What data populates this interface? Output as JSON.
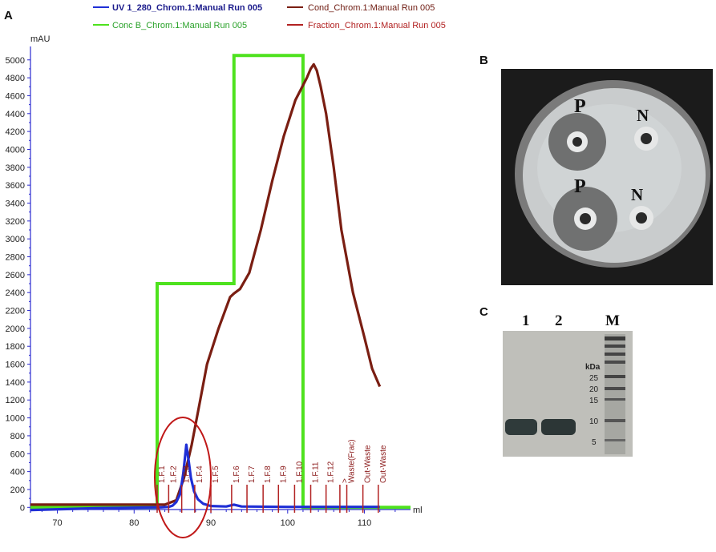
{
  "panels": {
    "a": "A",
    "b": "B",
    "c": "C"
  },
  "colors": {
    "uv": "#1f2fd6",
    "cond": "#7a1e12",
    "concb": "#4ee21e",
    "fraction": "#b22222",
    "axis": "#2a2ad0",
    "uv_legend_text": "#1c1c8c",
    "concb_legend_text": "#2aa22a",
    "cond_legend_text": "#6e1a10",
    "fraction_legend_text": "#b22222"
  },
  "chart_data": {
    "type": "line",
    "ylabel": "mAU",
    "xlabel": "ml",
    "xlim": [
      66.5,
      116
    ],
    "ylim": [
      -60,
      5150
    ],
    "x_ticks": [
      70,
      80,
      90,
      100,
      110
    ],
    "y_ticks": [
      0,
      200,
      400,
      600,
      800,
      1000,
      1200,
      1400,
      1600,
      1800,
      2000,
      2200,
      2400,
      2600,
      2800,
      3000,
      3200,
      3400,
      3600,
      3800,
      4000,
      4200,
      4400,
      4600,
      4800,
      5000
    ],
    "grid": false,
    "legend_position": "top",
    "series": [
      {
        "name": "UV 1_280_Chrom.1:Manual Run  005",
        "x": [
          66.5,
          75,
          82.5,
          83.5,
          84.5,
          85,
          85.5,
          86,
          86.4,
          86.8,
          87.1,
          87.4,
          87.8,
          88.3,
          89,
          90,
          92,
          93,
          94,
          100,
          105,
          112
        ],
        "y": [
          -30,
          -10,
          0,
          0,
          5,
          20,
          60,
          150,
          380,
          700,
          520,
          330,
          180,
          90,
          40,
          15,
          10,
          30,
          10,
          5,
          5,
          5
        ]
      },
      {
        "name": "Cond_Chrom.1:Manual Run  005",
        "x": [
          66.5,
          75,
          82.5,
          84,
          85.5,
          86.5,
          87.5,
          88.5,
          89.5,
          91,
          92.5,
          93,
          93.8,
          95,
          96.5,
          98,
          99.5,
          101,
          102.5,
          103,
          103.4,
          103.8,
          104.3,
          105,
          106,
          107,
          108.5,
          110,
          111,
          112
        ],
        "y": [
          30,
          30,
          30,
          30,
          80,
          330,
          700,
          1150,
          1600,
          2000,
          2350,
          2390,
          2440,
          2620,
          3100,
          3650,
          4150,
          4550,
          4800,
          4900,
          4950,
          4880,
          4700,
          4400,
          3800,
          3100,
          2400,
          1900,
          1550,
          1350
        ]
      },
      {
        "name": "Conc B_Chrom.1:Manual Run  005",
        "x": [
          66.5,
          83,
          83,
          93,
          93,
          102,
          102,
          116
        ],
        "y": [
          0,
          0,
          2500,
          2500,
          5050,
          5050,
          0,
          0
        ]
      }
    ],
    "fractions": {
      "name": "Fraction_Chrom.1:Manual Run  005",
      "marks": [
        {
          "x": 83.0,
          "label": "1.F.1"
        },
        {
          "x": 84.5,
          "label": "1.F.2"
        },
        {
          "x": 86.2,
          "label": "1.F.3"
        },
        {
          "x": 87.9,
          "label": "1.F.4"
        },
        {
          "x": 90.0,
          "label": "1.F.5"
        },
        {
          "x": 92.7,
          "label": "1.F.6"
        },
        {
          "x": 94.7,
          "label": "1.F.7"
        },
        {
          "x": 96.8,
          "label": "1.F.8"
        },
        {
          "x": 98.8,
          "label": "1.F.9"
        },
        {
          "x": 100.9,
          "label": "1.F.10"
        },
        {
          "x": 103.0,
          "label": "1.F.11"
        },
        {
          "x": 105.0,
          "label": "1.F.12"
        },
        {
          "x": 106.8,
          "label": ">"
        },
        {
          "x": 107.7,
          "label": "Waste(Frac)"
        },
        {
          "x": 109.8,
          "label": "Out-Waste"
        },
        {
          "x": 111.8,
          "label": "Out-Waste"
        }
      ]
    }
  },
  "photo_b": {
    "labels": [
      "P",
      "N",
      "P",
      "N"
    ]
  },
  "photo_c": {
    "lanes": [
      "1",
      "2",
      "M"
    ],
    "kda_label": "kDa",
    "markers": [
      "25",
      "20",
      "15",
      "10",
      "5"
    ]
  }
}
